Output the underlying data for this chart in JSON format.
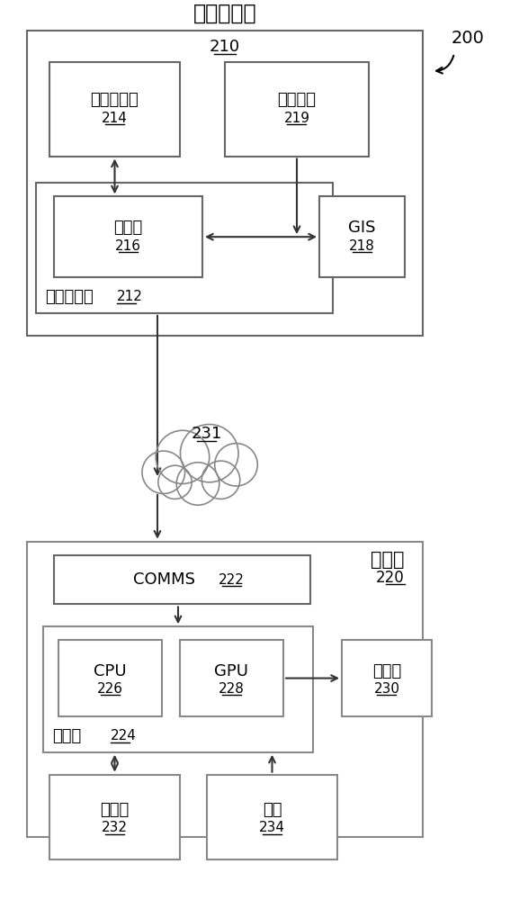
{
  "bg_color": "#ffffff",
  "title_200": "200",
  "server_system_label": "服务器系统",
  "server_system_num": "210",
  "app_db_label": "应用数据库",
  "app_db_num": "214",
  "shared_storage_label": "共享存储",
  "shared_storage_num": "219",
  "layer_service_label": "层服务",
  "layer_service_num": "216",
  "app_server_label": "应用服务器",
  "app_server_num": "212",
  "gis_label": "GIS",
  "gis_num": "218",
  "cloud_num": "231",
  "client_label": "客户端",
  "client_num": "220",
  "comms_label": "COMMS",
  "comms_num": "222",
  "processor_label": "处理器",
  "processor_num": "224",
  "cpu_label": "CPU",
  "cpu_num": "226",
  "gpu_label": "GPU",
  "gpu_num": "228",
  "monitor_label": "监视器",
  "monitor_num": "230",
  "storage_label": "存储器",
  "storage_num": "232",
  "input_label": "输入",
  "input_num": "234"
}
